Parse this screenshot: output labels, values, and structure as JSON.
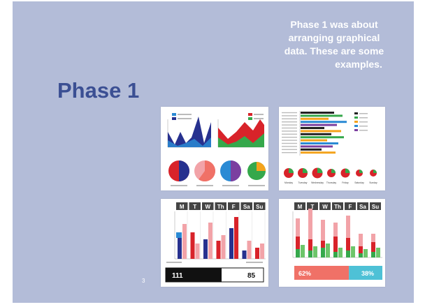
{
  "slide": {
    "title": "Phase 1",
    "caption_lines": [
      "Phase 1 was about",
      "arranging graphical",
      "data. These are some",
      "examples."
    ],
    "page_number": "3"
  },
  "thumbnails": {
    "weekly_bars": {
      "day_headers": [
        "M",
        "T",
        "W",
        "Th",
        "F",
        "Sa",
        "Su"
      ],
      "footer_left_value": "111",
      "footer_right_value": "85"
    },
    "progress": {
      "day_headers": [
        "M",
        "T",
        "W",
        "Th",
        "F",
        "Sa",
        "Su"
      ],
      "left_percent": "62%",
      "right_percent": "38%",
      "left_fraction": 0.62
    },
    "pies": {
      "fractions": [
        0.5,
        0.6,
        0.5,
        0.25
      ]
    },
    "bubbles": {
      "day_labels": [
        "Monday",
        "Tuesday",
        "Wednesday",
        "Thursday",
        "Friday",
        "Saturday",
        "Sunday"
      ]
    }
  },
  "colors": {
    "slide_bg": "#b3bcd8",
    "title": "#3b4f93",
    "navy": "#27318f",
    "red": "#d8232a",
    "green": "#35a84b",
    "pink": "#f2a3a8",
    "salmon": "#f07167",
    "cyan": "#4ec1d6",
    "blue": "#2a8ad4",
    "purple": "#7b3fa0",
    "orange": "#f4a31c"
  }
}
